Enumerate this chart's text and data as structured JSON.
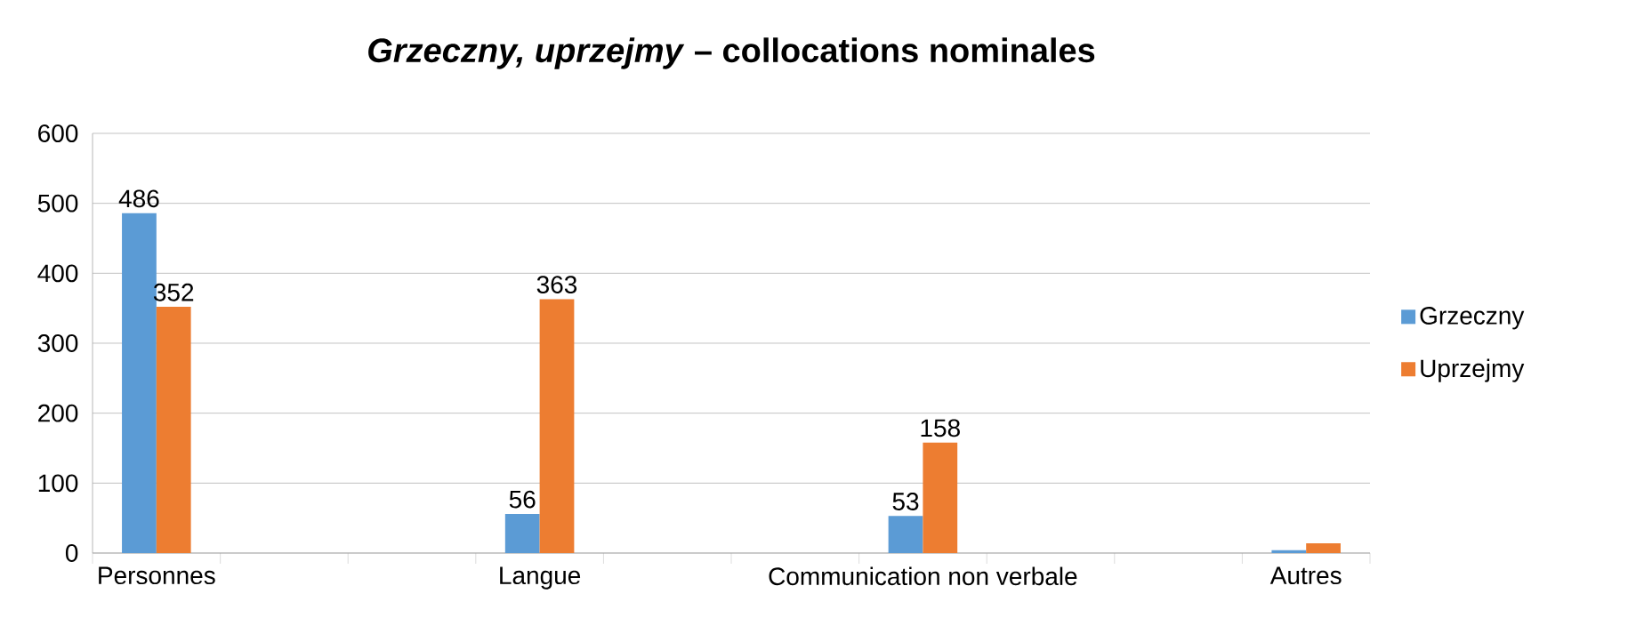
{
  "chart_data": {
    "type": "bar",
    "title": "*Grzeczny, uprzejmy* – collocations nominales",
    "categories": [
      "Personnes",
      null,
      null,
      "Langue",
      null,
      null,
      "Communication non verbale",
      null,
      null,
      "Autres"
    ],
    "series": [
      {
        "name": "Grzeczny",
        "color": "#5b9bd5",
        "values": [
          486,
          null,
          null,
          56,
          null,
          null,
          53,
          null,
          null,
          4
        ],
        "value_labels": [
          "486",
          null,
          null,
          "56",
          null,
          null,
          "53",
          null,
          null,
          null
        ]
      },
      {
        "name": "Uprzejmy",
        "color": "#ed7d31",
        "values": [
          352,
          null,
          null,
          363,
          null,
          null,
          158,
          null,
          null,
          14
        ],
        "value_labels": [
          "352",
          null,
          null,
          "363",
          null,
          null,
          "158",
          null,
          null,
          null
        ]
      }
    ],
    "ylim": [
      0,
      600
    ],
    "yticks": [
      0,
      100,
      200,
      300,
      400,
      500,
      600
    ],
    "grid": "y",
    "legend": "right"
  }
}
